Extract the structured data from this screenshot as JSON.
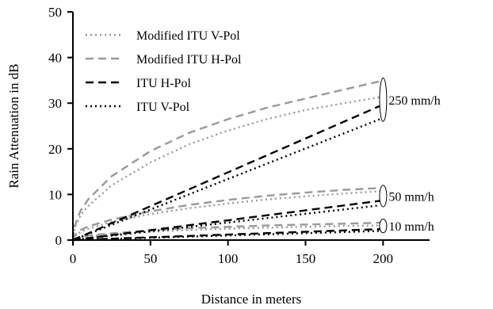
{
  "chart_data": {
    "type": "line",
    "xlabel": "Distance in meters",
    "ylabel": "Rain Attenuation in dB",
    "xlim": [
      0,
      230
    ],
    "ylim": [
      0,
      50
    ],
    "xticks": [
      "0",
      "50",
      "100",
      "150",
      "200"
    ],
    "yticks": [
      "0",
      "10",
      "20",
      "30",
      "40",
      "50"
    ],
    "grid": false,
    "legend_position": "top-left",
    "series": [
      {
        "name": "Modified ITU V-Pol",
        "style": "dotted",
        "color": "#999999",
        "x": [
          0,
          1,
          5,
          10,
          25,
          50,
          75,
          100,
          125,
          150,
          175,
          198
        ],
        "curves": [
          {
            "rate": "250 mm/h",
            "y": [
              0,
              2.5,
              5.5,
              7.5,
              12.0,
              17.0,
              21.0,
              24.0,
              26.5,
              28.5,
              30.0,
              31.3
            ]
          },
          {
            "rate": "50 mm/h",
            "y": [
              0,
              0.8,
              1.8,
              2.5,
              4.0,
              5.7,
              7.0,
              8.0,
              8.9,
              9.6,
              10.2,
              10.7
            ]
          },
          {
            "rate": "10 mm/h",
            "y": [
              0,
              0.3,
              0.6,
              0.8,
              1.3,
              1.8,
              2.2,
              2.5,
              2.7,
              2.9,
              3.1,
              3.2
            ]
          }
        ]
      },
      {
        "name": "Modified ITU H-Pol",
        "style": "dashed",
        "color": "#999999",
        "x": [
          0,
          1,
          5,
          10,
          25,
          50,
          75,
          100,
          125,
          150,
          175,
          198
        ],
        "curves": [
          {
            "rate": "250 mm/h",
            "y": [
              0,
              3.0,
              6.5,
              9.0,
              14.0,
              19.5,
              23.5,
              26.5,
              29.0,
              31.0,
              33.0,
              34.8
            ]
          },
          {
            "rate": "50 mm/h",
            "y": [
              0,
              1.0,
              2.2,
              3.0,
              4.5,
              6.3,
              7.7,
              8.8,
              9.7,
              10.4,
              11.0,
              11.4
            ]
          },
          {
            "rate": "10 mm/h",
            "y": [
              0,
              0.35,
              0.75,
              1.0,
              1.5,
              2.1,
              2.6,
              2.9,
              3.2,
              3.4,
              3.6,
              3.8
            ]
          }
        ]
      },
      {
        "name": "ITU H-Pol",
        "style": "dashed",
        "color": "#000000",
        "x": [
          0,
          198
        ],
        "curves": [
          {
            "rate": "250 mm/h",
            "y": [
              0,
              29.4
            ]
          },
          {
            "rate": "50 mm/h",
            "y": [
              0,
              8.6
            ]
          },
          {
            "rate": "10 mm/h",
            "y": [
              0,
              2.4
            ]
          }
        ]
      },
      {
        "name": "ITU V-Pol",
        "style": "dotted",
        "color": "#000000",
        "x": [
          0,
          198
        ],
        "curves": [
          {
            "rate": "250 mm/h",
            "y": [
              0,
              26.5
            ]
          },
          {
            "rate": "50 mm/h",
            "y": [
              0,
              7.6
            ]
          },
          {
            "rate": "10 mm/h",
            "y": [
              0,
              2.0
            ]
          }
        ]
      }
    ],
    "annotations": [
      {
        "text": "250 mm/h",
        "x": 198,
        "y_range": [
          26,
          35.5
        ]
      },
      {
        "text": "50 mm/h",
        "x": 198,
        "y_range": [
          7.3,
          12.0
        ]
      },
      {
        "text": "10 mm/h",
        "x": 198,
        "y_range": [
          1.6,
          4.6
        ]
      }
    ]
  }
}
